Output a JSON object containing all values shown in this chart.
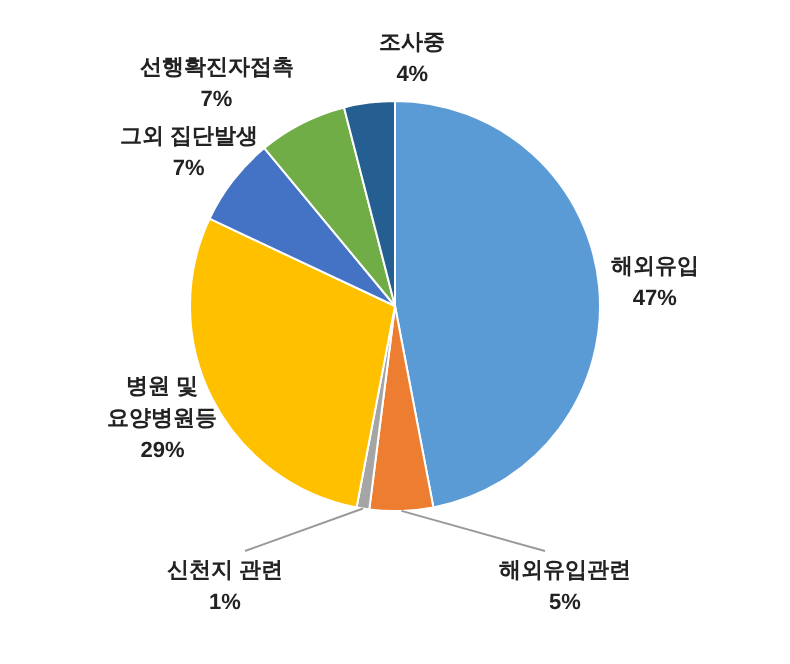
{
  "chart_data": {
    "type": "pie",
    "categories": [
      "해외유입",
      "해외유입관련",
      "신천지 관련",
      "병원 및 요양병원등",
      "그외 집단발생",
      "선행확진자접촉",
      "조사중"
    ],
    "values": [
      47,
      5,
      1,
      29,
      7,
      7,
      4
    ],
    "colors": [
      "#5b9bd5",
      "#ed7d31",
      "#a5a5a5",
      "#ffc000",
      "#4472c4",
      "#70ad47",
      "#255e91"
    ],
    "value_labels": [
      "47%",
      "5%",
      "1%",
      "29%",
      "7%",
      "7%",
      "4%"
    ],
    "legend": false
  }
}
